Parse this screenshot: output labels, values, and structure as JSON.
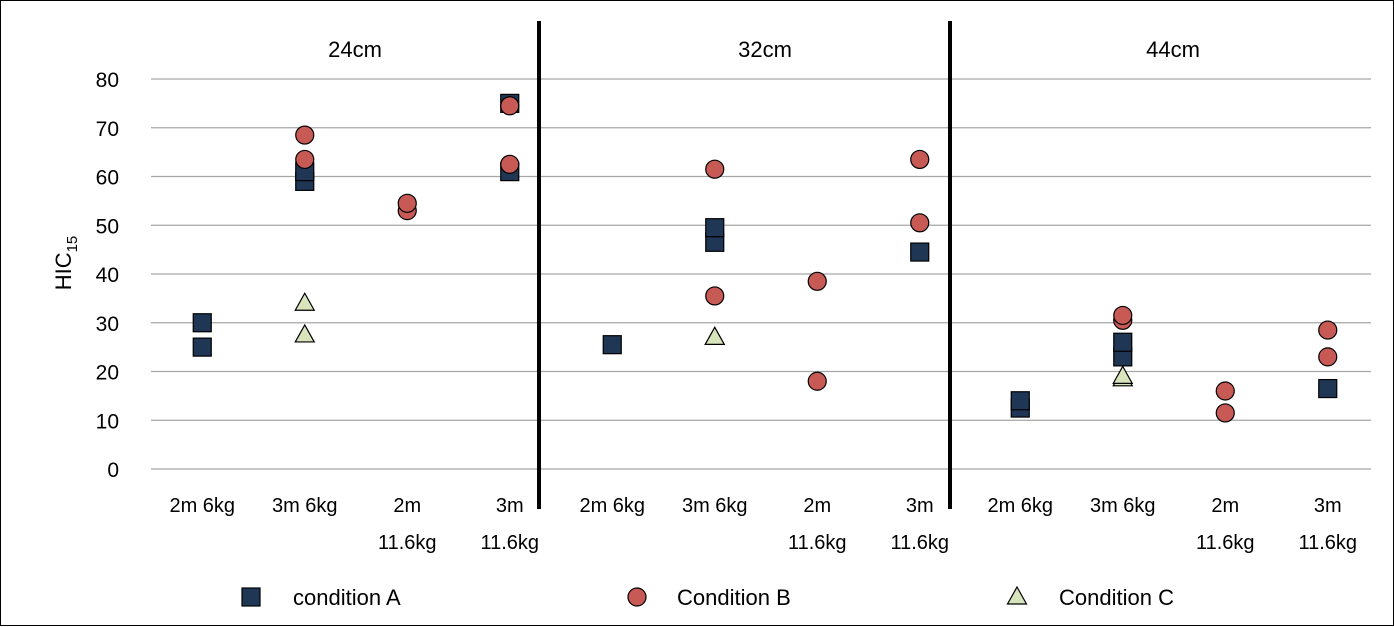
{
  "chart_data": {
    "type": "scatter",
    "ylabel": "HIC",
    "ylabel_subscript": "15",
    "ylim": [
      0,
      80
    ],
    "yticks": [
      0,
      10,
      20,
      30,
      40,
      50,
      60,
      70,
      80
    ],
    "grid": true,
    "legend_position": "bottom",
    "panels": [
      {
        "title": "24cm",
        "categories": [
          [
            "2m 6kg"
          ],
          [
            "3m 6kg"
          ],
          [
            "2m",
            "11.6kg"
          ],
          [
            "3m",
            "11.6kg"
          ]
        ]
      },
      {
        "title": "32cm",
        "categories": [
          [
            "2m 6kg"
          ],
          [
            "3m 6kg"
          ],
          [
            "2m",
            "11.6kg"
          ],
          [
            "3m",
            "11.6kg"
          ]
        ]
      },
      {
        "title": "44cm",
        "categories": [
          [
            "2m 6kg"
          ],
          [
            "3m 6kg"
          ],
          [
            "2m",
            "11.6kg"
          ],
          [
            "3m",
            "11.6kg"
          ]
        ]
      }
    ],
    "series": [
      {
        "name": "condition A",
        "marker": "square",
        "color": "#1f3655",
        "values": [
          [
            [
              30,
              25
            ],
            [
              59,
              61
            ],
            [],
            [
              61,
              75
            ]
          ],
          [
            [
              25.5
            ],
            [
              46.5,
              49.5
            ],
            [],
            [
              44.5
            ]
          ],
          [
            [
              12.5,
              14
            ],
            [
              23,
              26
            ],
            [],
            [
              16.5
            ]
          ]
        ]
      },
      {
        "name": "Condition B",
        "marker": "circle",
        "color": "#c85a56",
        "values": [
          [
            [],
            [
              63.5,
              68.5
            ],
            [
              53,
              54.5
            ],
            [
              62.5,
              74.5
            ]
          ],
          [
            [],
            [
              61.5,
              35.5
            ],
            [
              38.5,
              18
            ],
            [
              63.5,
              50.5
            ]
          ],
          [
            [],
            [
              30.5,
              31.5
            ],
            [
              16,
              11.5
            ],
            [
              23,
              28.5
            ]
          ]
        ]
      },
      {
        "name": "Condition C",
        "marker": "triangle",
        "color": "#d8e4bc",
        "values": [
          [
            [],
            [
              27.5,
              34
            ],
            [],
            []
          ],
          [
            [],
            [
              27,
              27
            ],
            [],
            []
          ],
          [
            [],
            [
              18.5,
              19
            ],
            [],
            []
          ]
        ]
      }
    ]
  }
}
